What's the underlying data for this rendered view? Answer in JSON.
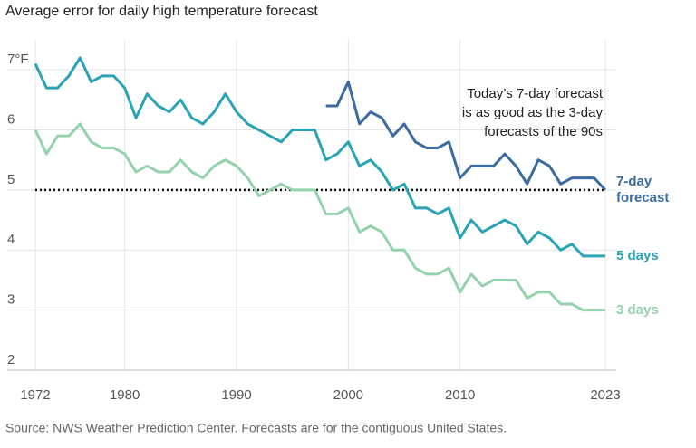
{
  "chart_data": {
    "type": "line",
    "title": "Average error for daily high temperature forecast",
    "source": "Source: NWS Weather Prediction Center. Forecasts are for the contiguous United States.",
    "annotation": [
      "Today’s 7-day forecast",
      "is as good as the 3-day",
      "forecasts of the 90s"
    ],
    "x": [
      1972,
      1973,
      1974,
      1975,
      1976,
      1977,
      1978,
      1979,
      1980,
      1981,
      1982,
      1983,
      1984,
      1985,
      1986,
      1987,
      1988,
      1989,
      1990,
      1991,
      1992,
      1993,
      1994,
      1995,
      1996,
      1997,
      1998,
      1999,
      2000,
      2001,
      2002,
      2003,
      2004,
      2005,
      2006,
      2007,
      2008,
      2009,
      2010,
      2011,
      2012,
      2013,
      2014,
      2015,
      2016,
      2017,
      2018,
      2019,
      2020,
      2021,
      2022,
      2023
    ],
    "series": [
      {
        "name": "7-day forecast",
        "color": "#3b6b9f",
        "values": [
          null,
          null,
          null,
          null,
          null,
          null,
          null,
          null,
          null,
          null,
          null,
          null,
          null,
          null,
          null,
          null,
          null,
          null,
          null,
          null,
          null,
          null,
          null,
          null,
          null,
          null,
          6.4,
          6.4,
          6.8,
          6.1,
          6.3,
          6.2,
          5.9,
          6.1,
          5.8,
          5.7,
          5.7,
          5.8,
          5.2,
          5.4,
          5.4,
          5.4,
          5.6,
          5.4,
          5.1,
          5.5,
          5.4,
          5.1,
          5.2,
          5.2,
          5.2,
          5.0
        ]
      },
      {
        "name": "5 days",
        "color": "#2aa3b4",
        "values": [
          7.1,
          6.7,
          6.7,
          6.9,
          7.2,
          6.8,
          6.9,
          6.9,
          6.7,
          6.2,
          6.6,
          6.4,
          6.3,
          6.5,
          6.2,
          6.1,
          6.3,
          6.6,
          6.3,
          6.1,
          6.0,
          5.9,
          5.8,
          6.0,
          6.0,
          6.0,
          5.5,
          5.6,
          5.8,
          5.4,
          5.5,
          5.3,
          5.0,
          5.1,
          4.7,
          4.7,
          4.6,
          4.7,
          4.2,
          4.5,
          4.3,
          4.4,
          4.5,
          4.4,
          4.1,
          4.3,
          4.2,
          4.0,
          4.1,
          3.9,
          3.9,
          3.9
        ]
      },
      {
        "name": "3 days",
        "color": "#94d2ae",
        "values": [
          6.0,
          5.6,
          5.9,
          5.9,
          6.1,
          5.8,
          5.7,
          5.7,
          5.6,
          5.3,
          5.4,
          5.3,
          5.3,
          5.5,
          5.3,
          5.2,
          5.4,
          5.5,
          5.4,
          5.2,
          4.9,
          5.0,
          5.1,
          5.0,
          5.0,
          5.0,
          4.6,
          4.6,
          4.7,
          4.3,
          4.4,
          4.3,
          4.0,
          4.0,
          3.7,
          3.6,
          3.6,
          3.7,
          3.3,
          3.6,
          3.4,
          3.5,
          3.5,
          3.5,
          3.2,
          3.3,
          3.3,
          3.1,
          3.1,
          3.0,
          3.0,
          3.0
        ]
      }
    ],
    "reference_line": 5,
    "xlim": [
      1972,
      2023
    ],
    "xticks": [
      1972,
      1980,
      1990,
      2000,
      2010,
      2023
    ],
    "ylim": [
      2,
      7.5
    ],
    "yticks": [
      2,
      3,
      4,
      5,
      6,
      {
        "value": 7,
        "label": "7°F"
      }
    ],
    "grid": true
  }
}
